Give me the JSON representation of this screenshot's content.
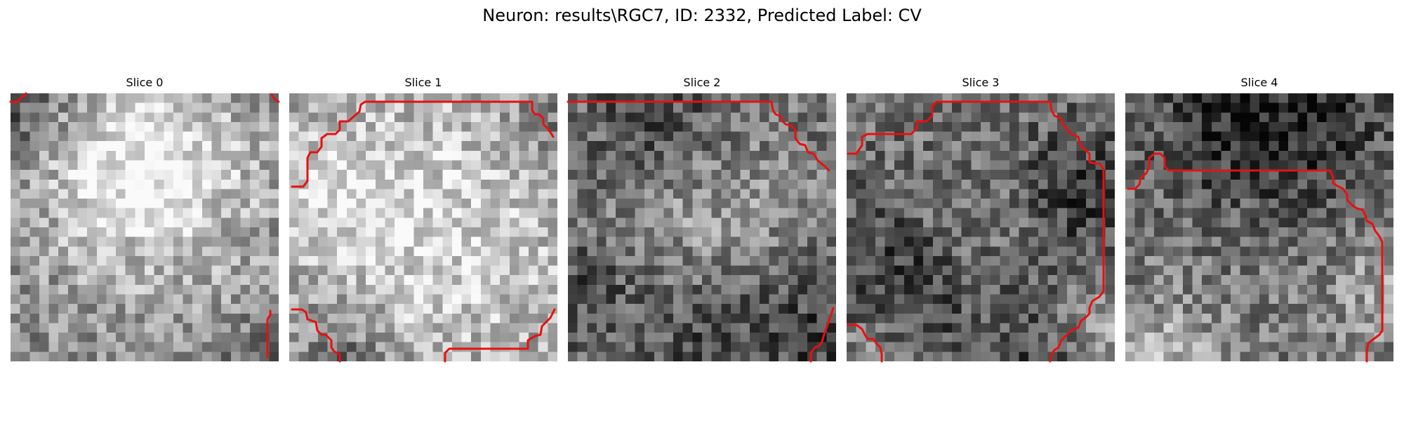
{
  "figure": {
    "title": "Neuron: results\\RGC7, ID: 2332, Predicted Label: CV"
  },
  "slices": [
    {
      "label": "Slice 0"
    },
    {
      "label": "Slice 1"
    },
    {
      "label": "Slice 2"
    },
    {
      "label": "Slice 3"
    },
    {
      "label": "Slice 4"
    }
  ],
  "colors": {
    "contour": "#e81010",
    "background": "#ffffff"
  },
  "image_style": "grayscale pixelated microscopy patches (about 28x28 pixels each) with red segmentation contour overlays"
}
